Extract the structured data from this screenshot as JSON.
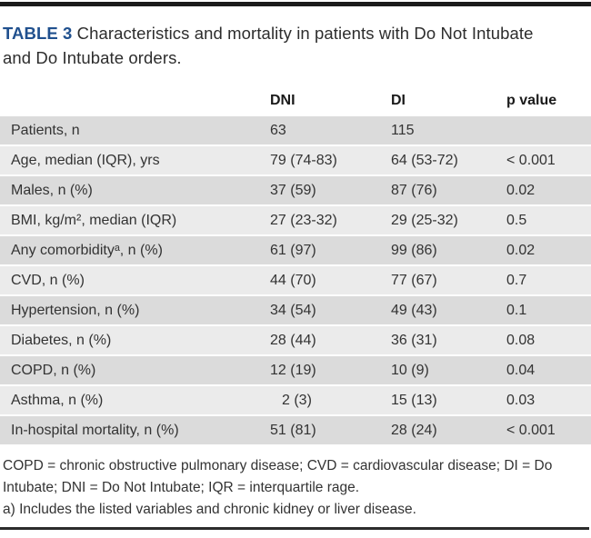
{
  "title": {
    "label": "TABLE 3",
    "text": "Characteristics and mortality in patients with Do Not Intubate and Do Intubate orders."
  },
  "table": {
    "columns": [
      "",
      "DNI",
      "DI",
      "p value"
    ],
    "rows": [
      {
        "label": "Patients, n",
        "dni": "63",
        "di": "115",
        "p": ""
      },
      {
        "label": "Age, median (IQR), yrs",
        "dni": "79 (74-83)",
        "di": "64 (53-72)",
        "p": "< 0.001"
      },
      {
        "label": "Males, n (%)",
        "dni": "37 (59)",
        "di": "87 (76)",
        "p": "0.02"
      },
      {
        "label": "BMI, kg/m², median (IQR)",
        "dni": "27 (23-32)",
        "di": "29 (25-32)",
        "p": "0.5"
      },
      {
        "label": "Any comorbidityᵃ, n (%)",
        "dni": "61 (97)",
        "di": "99 (86)",
        "p": "0.02"
      },
      {
        "label": "CVD, n (%)",
        "dni": "44 (70)",
        "di": "77 (67)",
        "p": "0.7"
      },
      {
        "label": "Hypertension, n (%)",
        "dni": "34 (54)",
        "di": "49 (43)",
        "p": "0.1"
      },
      {
        "label": "Diabetes, n (%)",
        "dni": "28 (44)",
        "di": "36 (31)",
        "p": "0.08"
      },
      {
        "label": "COPD, n (%)",
        "dni": "12 (19)",
        "di": "10 (9)",
        "p": "0.04"
      },
      {
        "label": "Asthma, n (%)",
        "dni": "2 (3)",
        "di": "15 (13)",
        "p": "0.03"
      },
      {
        "label": "In-hospital mortality, n (%)",
        "dni": "51 (81)",
        "di": "28 (24)",
        "p": "< 0.001"
      }
    ]
  },
  "footnotes": {
    "abbreviations": "COPD = chronic obstructive pulmonary disease; CVD = cardiovascular disease; DI = Do Intubate; DNI = Do Not Intubate; IQR = interquartile rage.",
    "note_a": "a) Includes the listed variables and chronic kidney or liver disease."
  },
  "colors": {
    "title_accent": "#20508e",
    "stripe_dark": "#dbdbdb",
    "stripe_light": "#ebebeb",
    "rule": "#1b1b1b",
    "text": "#333333"
  }
}
